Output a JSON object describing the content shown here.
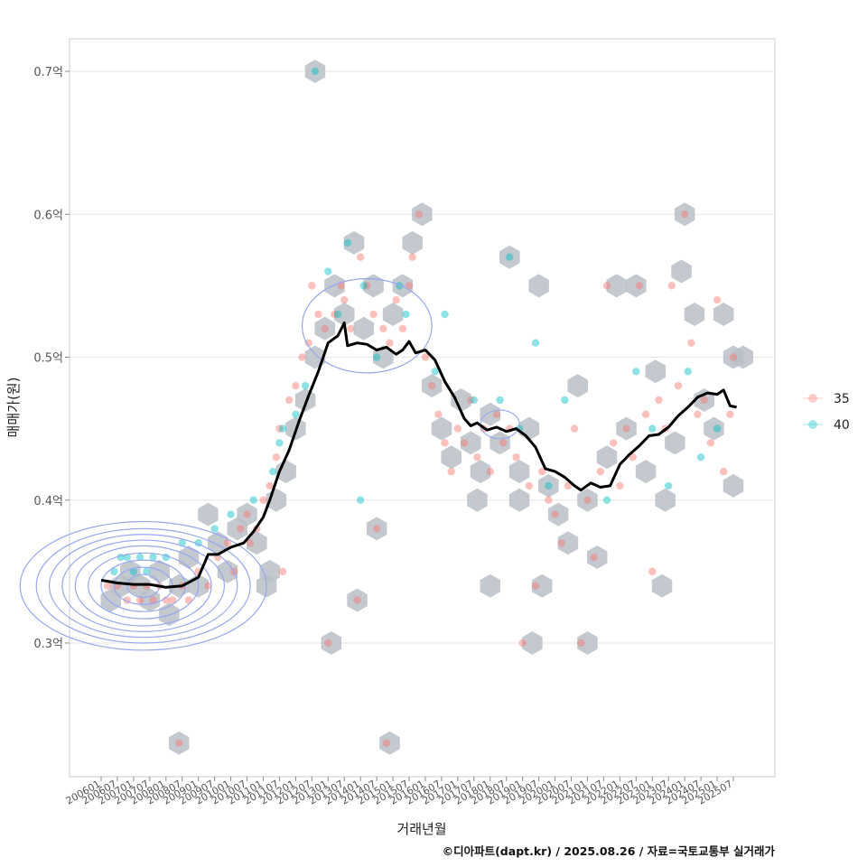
{
  "chart_data": {
    "type": "scatter",
    "xlabel": "거래년월",
    "ylabel": "매매가(원)",
    "caption": "©디아파트(dapt.kr) / 2025.08.26 / 자료=국토교통부 실거래가",
    "ylim": [
      0.21,
      0.725
    ],
    "y_ticks": [
      {
        "value": 0.3,
        "label": "0.3억"
      },
      {
        "value": 0.4,
        "label": "0.4억"
      },
      {
        "value": 0.5,
        "label": "0.5억"
      },
      {
        "value": 0.6,
        "label": "0.6억"
      },
      {
        "value": 0.7,
        "label": "0.7억"
      }
    ],
    "x_ticks": [
      "200601",
      "200607",
      "200701",
      "200707",
      "200801",
      "200807",
      "200901",
      "200907",
      "201001",
      "201007",
      "201101",
      "201107",
      "201201",
      "201207",
      "201301",
      "201307",
      "201401",
      "201407",
      "201501",
      "201507",
      "201601",
      "201607",
      "201701",
      "201707",
      "201801",
      "201807",
      "201901",
      "201907",
      "202001",
      "202007",
      "202101",
      "202107",
      "202201",
      "202207",
      "202301",
      "202307",
      "202401",
      "202407",
      "202501",
      "202507"
    ],
    "legend": {
      "position": "right",
      "items": [
        {
          "label": "35",
          "color": "#F8766D"
        },
        {
          "label": "40",
          "color": "#00BFC4"
        }
      ]
    },
    "grid": true,
    "hexbin_color": "#b9c0c7",
    "trend_color": "#000000",
    "density_color": "#97a8f0",
    "series": [
      {
        "name": "35",
        "color": "#F8766D",
        "points": [
          [
            2006.2,
            0.34
          ],
          [
            2006.5,
            0.34
          ],
          [
            2006.8,
            0.33
          ],
          [
            2007.0,
            0.34
          ],
          [
            2007.2,
            0.33
          ],
          [
            2007.4,
            0.34
          ],
          [
            2007.6,
            0.33
          ],
          [
            2007.8,
            0.34
          ],
          [
            2008.0,
            0.33
          ],
          [
            2008.2,
            0.33
          ],
          [
            2008.5,
            0.34
          ],
          [
            2008.7,
            0.33
          ],
          [
            2008.4,
            0.23
          ],
          [
            2009.0,
            0.35
          ],
          [
            2009.3,
            0.34
          ],
          [
            2009.6,
            0.36
          ],
          [
            2009.9,
            0.37
          ],
          [
            2010.1,
            0.35
          ],
          [
            2010.3,
            0.38
          ],
          [
            2010.5,
            0.39
          ],
          [
            2010.6,
            0.37
          ],
          [
            2010.8,
            0.38
          ],
          [
            2011.0,
            0.4
          ],
          [
            2011.2,
            0.41
          ],
          [
            2011.4,
            0.43
          ],
          [
            2011.5,
            0.45
          ],
          [
            2011.6,
            0.35
          ],
          [
            2011.8,
            0.47
          ],
          [
            2012.0,
            0.48
          ],
          [
            2012.2,
            0.5
          ],
          [
            2012.4,
            0.51
          ],
          [
            2012.5,
            0.55
          ],
          [
            2012.7,
            0.53
          ],
          [
            2012.9,
            0.52
          ],
          [
            2013.0,
            0.3
          ],
          [
            2013.2,
            0.53
          ],
          [
            2013.4,
            0.55
          ],
          [
            2013.5,
            0.54
          ],
          [
            2013.7,
            0.52
          ],
          [
            2013.9,
            0.33
          ],
          [
            2014.0,
            0.57
          ],
          [
            2014.2,
            0.55
          ],
          [
            2014.4,
            0.53
          ],
          [
            2014.5,
            0.38
          ],
          [
            2014.7,
            0.52
          ],
          [
            2014.8,
            0.23
          ],
          [
            2014.9,
            0.51
          ],
          [
            2015.1,
            0.54
          ],
          [
            2015.3,
            0.52
          ],
          [
            2015.5,
            0.55
          ],
          [
            2015.6,
            0.57
          ],
          [
            2015.8,
            0.6
          ],
          [
            2016.0,
            0.5
          ],
          [
            2016.2,
            0.48
          ],
          [
            2016.4,
            0.46
          ],
          [
            2016.6,
            0.44
          ],
          [
            2016.8,
            0.42
          ],
          [
            2017.0,
            0.45
          ],
          [
            2017.2,
            0.44
          ],
          [
            2017.4,
            0.47
          ],
          [
            2017.6,
            0.43
          ],
          [
            2017.8,
            0.45
          ],
          [
            2018.0,
            0.42
          ],
          [
            2018.2,
            0.46
          ],
          [
            2018.4,
            0.44
          ],
          [
            2018.6,
            0.45
          ],
          [
            2018.8,
            0.43
          ],
          [
            2019.0,
            0.3
          ],
          [
            2019.2,
            0.41
          ],
          [
            2019.4,
            0.34
          ],
          [
            2019.6,
            0.42
          ],
          [
            2019.8,
            0.4
          ],
          [
            2020.0,
            0.39
          ],
          [
            2020.2,
            0.37
          ],
          [
            2020.4,
            0.41
          ],
          [
            2020.6,
            0.45
          ],
          [
            2020.8,
            0.3
          ],
          [
            2021.0,
            0.4
          ],
          [
            2021.2,
            0.36
          ],
          [
            2021.4,
            0.42
          ],
          [
            2021.6,
            0.55
          ],
          [
            2021.8,
            0.44
          ],
          [
            2022.0,
            0.41
          ],
          [
            2022.2,
            0.45
          ],
          [
            2022.4,
            0.43
          ],
          [
            2022.6,
            0.55
          ],
          [
            2022.8,
            0.46
          ],
          [
            2023.0,
            0.35
          ],
          [
            2023.2,
            0.47
          ],
          [
            2023.4,
            0.45
          ],
          [
            2023.6,
            0.55
          ],
          [
            2023.8,
            0.48
          ],
          [
            2024.0,
            0.6
          ],
          [
            2024.2,
            0.51
          ],
          [
            2024.4,
            0.46
          ],
          [
            2024.6,
            0.47
          ],
          [
            2024.8,
            0.44
          ],
          [
            2025.0,
            0.54
          ],
          [
            2025.2,
            0.42
          ],
          [
            2025.4,
            0.46
          ],
          [
            2025.5,
            0.5
          ]
        ]
      },
      {
        "name": "40",
        "color": "#00BFC4",
        "points": [
          [
            2006.4,
            0.35
          ],
          [
            2006.6,
            0.36
          ],
          [
            2006.8,
            0.36
          ],
          [
            2007.0,
            0.35
          ],
          [
            2007.2,
            0.36
          ],
          [
            2007.4,
            0.35
          ],
          [
            2007.6,
            0.36
          ],
          [
            2008.0,
            0.36
          ],
          [
            2008.5,
            0.37
          ],
          [
            2009.0,
            0.37
          ],
          [
            2009.5,
            0.38
          ],
          [
            2010.0,
            0.39
          ],
          [
            2010.7,
            0.4
          ],
          [
            2011.3,
            0.42
          ],
          [
            2011.5,
            0.44
          ],
          [
            2011.6,
            0.45
          ],
          [
            2012.0,
            0.46
          ],
          [
            2012.3,
            0.48
          ],
          [
            2012.6,
            0.7
          ],
          [
            2013.0,
            0.56
          ],
          [
            2013.3,
            0.53
          ],
          [
            2013.6,
            0.58
          ],
          [
            2014.0,
            0.4
          ],
          [
            2014.1,
            0.55
          ],
          [
            2014.5,
            0.5
          ],
          [
            2015.2,
            0.55
          ],
          [
            2015.4,
            0.53
          ],
          [
            2016.3,
            0.49
          ],
          [
            2016.6,
            0.53
          ],
          [
            2017.5,
            0.47
          ],
          [
            2018.3,
            0.47
          ],
          [
            2018.6,
            0.57
          ],
          [
            2018.9,
            0.45
          ],
          [
            2019.4,
            0.51
          ],
          [
            2019.8,
            0.41
          ],
          [
            2020.3,
            0.47
          ],
          [
            2021.6,
            0.4
          ],
          [
            2022.5,
            0.49
          ],
          [
            2023.0,
            0.45
          ],
          [
            2023.5,
            0.41
          ],
          [
            2024.1,
            0.49
          ],
          [
            2024.5,
            0.43
          ],
          [
            2025.0,
            0.45
          ]
        ]
      }
    ],
    "trend": [
      [
        2006.0,
        0.344
      ],
      [
        2006.5,
        0.342
      ],
      [
        2007.0,
        0.341
      ],
      [
        2007.5,
        0.341
      ],
      [
        2008.0,
        0.339
      ],
      [
        2008.5,
        0.34
      ],
      [
        2009.0,
        0.346
      ],
      [
        2009.3,
        0.362
      ],
      [
        2009.6,
        0.362
      ],
      [
        2010.0,
        0.367
      ],
      [
        2010.4,
        0.37
      ],
      [
        2010.7,
        0.378
      ],
      [
        2011.0,
        0.388
      ],
      [
        2011.2,
        0.4
      ],
      [
        2011.5,
        0.42
      ],
      [
        2011.8,
        0.435
      ],
      [
        2012.1,
        0.455
      ],
      [
        2012.4,
        0.473
      ],
      [
        2012.7,
        0.49
      ],
      [
        2013.0,
        0.51
      ],
      [
        2013.3,
        0.515
      ],
      [
        2013.5,
        0.524
      ],
      [
        2013.6,
        0.508
      ],
      [
        2013.9,
        0.51
      ],
      [
        2014.2,
        0.509
      ],
      [
        2014.5,
        0.505
      ],
      [
        2014.8,
        0.507
      ],
      [
        2015.1,
        0.502
      ],
      [
        2015.3,
        0.505
      ],
      [
        2015.5,
        0.511
      ],
      [
        2015.7,
        0.503
      ],
      [
        2016.0,
        0.505
      ],
      [
        2016.3,
        0.498
      ],
      [
        2016.6,
        0.483
      ],
      [
        2016.9,
        0.472
      ],
      [
        2017.2,
        0.457
      ],
      [
        2017.4,
        0.452
      ],
      [
        2017.6,
        0.454
      ],
      [
        2017.9,
        0.449
      ],
      [
        2018.2,
        0.451
      ],
      [
        2018.5,
        0.448
      ],
      [
        2018.8,
        0.45
      ],
      [
        2019.1,
        0.445
      ],
      [
        2019.4,
        0.437
      ],
      [
        2019.7,
        0.422
      ],
      [
        2020.0,
        0.42
      ],
      [
        2020.3,
        0.416
      ],
      [
        2020.6,
        0.41
      ],
      [
        2020.8,
        0.407
      ],
      [
        2021.1,
        0.412
      ],
      [
        2021.4,
        0.409
      ],
      [
        2021.7,
        0.41
      ],
      [
        2022.0,
        0.425
      ],
      [
        2022.3,
        0.432
      ],
      [
        2022.6,
        0.438
      ],
      [
        2022.9,
        0.445
      ],
      [
        2023.2,
        0.446
      ],
      [
        2023.5,
        0.451
      ],
      [
        2023.8,
        0.459
      ],
      [
        2024.1,
        0.465
      ],
      [
        2024.4,
        0.472
      ],
      [
        2024.7,
        0.475
      ],
      [
        2025.0,
        0.474
      ],
      [
        2025.2,
        0.477
      ],
      [
        2025.4,
        0.466
      ],
      [
        2025.6,
        0.465
      ]
    ],
    "hexbins": [
      [
        2006.3,
        0.33
      ],
      [
        2006.6,
        0.34
      ],
      [
        2006.9,
        0.35
      ],
      [
        2007.2,
        0.34
      ],
      [
        2007.5,
        0.33
      ],
      [
        2007.8,
        0.35
      ],
      [
        2008.1,
        0.32
      ],
      [
        2008.4,
        0.34
      ],
      [
        2008.7,
        0.36
      ],
      [
        2009.0,
        0.34
      ],
      [
        2009.3,
        0.39
      ],
      [
        2009.6,
        0.37
      ],
      [
        2009.9,
        0.35
      ],
      [
        2010.2,
        0.38
      ],
      [
        2010.5,
        0.39
      ],
      [
        2010.8,
        0.37
      ],
      [
        2011.1,
        0.34
      ],
      [
        2011.4,
        0.4
      ],
      [
        2011.7,
        0.42
      ],
      [
        2008.4,
        0.23
      ],
      [
        2011.2,
        0.35
      ],
      [
        2012.0,
        0.45
      ],
      [
        2012.3,
        0.47
      ],
      [
        2012.6,
        0.5
      ],
      [
        2012.9,
        0.52
      ],
      [
        2013.2,
        0.55
      ],
      [
        2013.5,
        0.53
      ],
      [
        2013.8,
        0.58
      ],
      [
        2014.1,
        0.52
      ],
      [
        2014.4,
        0.55
      ],
      [
        2014.7,
        0.5
      ],
      [
        2015.0,
        0.53
      ],
      [
        2015.3,
        0.55
      ],
      [
        2015.6,
        0.58
      ],
      [
        2015.9,
        0.6
      ],
      [
        2012.6,
        0.7
      ],
      [
        2013.1,
        0.3
      ],
      [
        2013.9,
        0.33
      ],
      [
        2014.5,
        0.38
      ],
      [
        2014.9,
        0.23
      ],
      [
        2016.2,
        0.48
      ],
      [
        2016.5,
        0.45
      ],
      [
        2016.8,
        0.43
      ],
      [
        2017.1,
        0.47
      ],
      [
        2017.4,
        0.44
      ],
      [
        2017.7,
        0.42
      ],
      [
        2018.0,
        0.46
      ],
      [
        2018.3,
        0.44
      ],
      [
        2018.6,
        0.57
      ],
      [
        2018.9,
        0.42
      ],
      [
        2019.2,
        0.45
      ],
      [
        2019.5,
        0.55
      ],
      [
        2019.8,
        0.41
      ],
      [
        2020.1,
        0.39
      ],
      [
        2020.4,
        0.37
      ],
      [
        2020.7,
        0.48
      ],
      [
        2021.0,
        0.4
      ],
      [
        2021.3,
        0.36
      ],
      [
        2021.6,
        0.43
      ],
      [
        2021.9,
        0.55
      ],
      [
        2022.2,
        0.45
      ],
      [
        2022.5,
        0.55
      ],
      [
        2022.8,
        0.42
      ],
      [
        2023.1,
        0.49
      ],
      [
        2023.4,
        0.4
      ],
      [
        2023.7,
        0.44
      ],
      [
        2024.0,
        0.6
      ],
      [
        2024.3,
        0.53
      ],
      [
        2024.6,
        0.47
      ],
      [
        2024.9,
        0.45
      ],
      [
        2025.2,
        0.53
      ],
      [
        2025.5,
        0.5
      ],
      [
        2025.8,
        0.5
      ],
      [
        2025.5,
        0.41
      ],
      [
        2023.9,
        0.56
      ],
      [
        2018.0,
        0.34
      ],
      [
        2019.6,
        0.34
      ],
      [
        2019.3,
        0.3
      ],
      [
        2021.0,
        0.3
      ],
      [
        2023.3,
        0.34
      ],
      [
        2017.6,
        0.4
      ],
      [
        2018.9,
        0.4
      ]
    ],
    "density_ellipses": [
      {
        "cx": 2007.3,
        "cy": 0.34,
        "rx": [
          0.5,
          0.9,
          1.3,
          1.7,
          2.1,
          2.5,
          2.9,
          3.3,
          3.8
        ],
        "ry": [
          0.008,
          0.013,
          0.018,
          0.023,
          0.028,
          0.032,
          0.036,
          0.04,
          0.045
        ]
      },
      {
        "cx": 2014.2,
        "cy": 0.522,
        "rx": [
          2.0
        ],
        "ry": [
          0.033
        ]
      },
      {
        "cx": 2018.3,
        "cy": 0.453,
        "rx": [
          0.6
        ],
        "ry": [
          0.01
        ]
      }
    ]
  }
}
